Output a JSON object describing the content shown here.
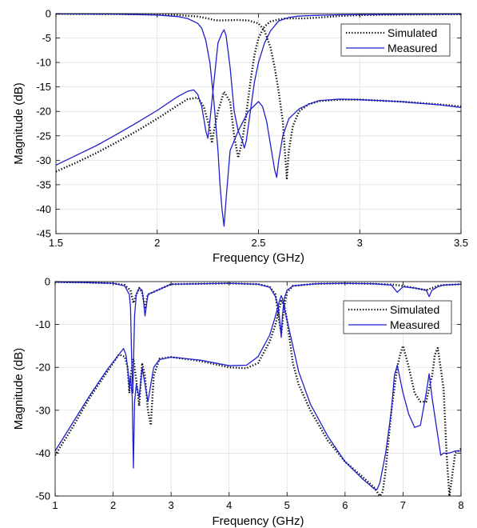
{
  "chart_data": [
    {
      "type": "line",
      "title": "",
      "xlabel": "Frequency (GHz)",
      "ylabel": "Magnitude (dB)",
      "xlim": [
        1.5,
        3.5
      ],
      "ylim": [
        -45,
        0
      ],
      "xticks": [
        1.5,
        2,
        2.5,
        3,
        3.5
      ],
      "xtick_labels": [
        "1.5",
        "2",
        "2.5",
        "3",
        "3.5"
      ],
      "yticks": [
        0,
        -5,
        -10,
        -15,
        -20,
        -25,
        -30,
        -35,
        -40,
        -45
      ],
      "ytick_labels": [
        "0",
        "-5",
        "-10",
        "-15",
        "-20",
        "-25",
        "-30",
        "-35",
        "-40",
        "-45"
      ],
      "grid": true,
      "legend_position": "top-right",
      "series": [
        {
          "name": "Simulated",
          "color": "#000000",
          "style": "dotted",
          "curves": [
            {
              "x": [
                1.5,
                1.6,
                1.7,
                1.8,
                1.9,
                2.0,
                2.1,
                2.15,
                2.2,
                2.23,
                2.26,
                2.27,
                2.28,
                2.3,
                2.33,
                2.36,
                2.38,
                2.4,
                2.42,
                2.44,
                2.46,
                2.48,
                2.5,
                2.53,
                2.56,
                2.6,
                2.62,
                2.63,
                2.64,
                2.65,
                2.68,
                2.72,
                2.8,
                2.9,
                3.0,
                3.2,
                3.4,
                3.5
              ],
              "y": [
                -32.3,
                -30.5,
                -28.5,
                -26.3,
                -24.0,
                -21.5,
                -18.8,
                -17.5,
                -17.2,
                -19.0,
                -23.5,
                -26.5,
                -24.0,
                -20.0,
                -16.0,
                -18.0,
                -25.0,
                -29.5,
                -26.0,
                -20.5,
                -14.0,
                -8.5,
                -5.0,
                -2.6,
                -1.6,
                -1.2,
                -1.1,
                -1.0,
                -1.0,
                -1.0,
                -1.0,
                -1.0,
                -0.8,
                -0.5,
                -0.3,
                -0.2,
                -0.15,
                -0.1
              ]
            },
            {
              "x": [
                1.5,
                1.8,
                2.0,
                2.1,
                2.2,
                2.25,
                2.28,
                2.3,
                2.35,
                2.4,
                2.45,
                2.5,
                2.53,
                2.56,
                2.58,
                2.6,
                2.62,
                2.63,
                2.64,
                2.65,
                2.67,
                2.7,
                2.75,
                2.8,
                2.9,
                3.0,
                3.2,
                3.4,
                3.5
              ],
              "y": [
                -0.05,
                -0.1,
                -0.2,
                -0.3,
                -0.6,
                -1.0,
                -1.3,
                -1.4,
                -1.35,
                -1.3,
                -1.4,
                -2.0,
                -3.5,
                -7.0,
                -11.0,
                -16.0,
                -22.0,
                -28.0,
                -33.7,
                -28.0,
                -23.0,
                -20.0,
                -18.5,
                -17.9,
                -17.6,
                -17.6,
                -18.0,
                -18.6,
                -19.0
              ]
            }
          ]
        },
        {
          "name": "Measured",
          "color": "#1f1fcf",
          "style": "solid",
          "curves": [
            {
              "x": [
                1.5,
                1.6,
                1.7,
                1.8,
                1.9,
                2.0,
                2.1,
                2.15,
                2.18,
                2.2,
                2.22,
                2.24,
                2.25,
                2.26,
                2.28,
                2.3,
                2.32,
                2.33,
                2.34,
                2.36,
                2.38,
                2.4,
                2.42,
                2.43,
                2.44,
                2.46,
                2.48,
                2.5,
                2.53,
                2.56,
                2.6,
                2.65,
                2.7,
                2.8,
                2.9,
                3.0,
                3.2,
                3.4,
                3.5
              ],
              "y": [
                -31.0,
                -29.0,
                -27.0,
                -24.7,
                -22.3,
                -19.8,
                -17.0,
                -15.9,
                -15.6,
                -16.5,
                -19.0,
                -24.0,
                -25.5,
                -22.0,
                -14.0,
                -6.0,
                -4.0,
                -3.3,
                -4.5,
                -11.0,
                -20.0,
                -24.0,
                -26.0,
                -27.5,
                -26.0,
                -20.0,
                -14.0,
                -10.0,
                -6.0,
                -3.5,
                -1.5,
                -0.8,
                -0.5,
                -0.35,
                -0.25,
                -0.2,
                -0.15,
                -0.1,
                -0.1
              ]
            },
            {
              "x": [
                1.5,
                1.8,
                2.0,
                2.1,
                2.15,
                2.2,
                2.22,
                2.24,
                2.26,
                2.28,
                2.3,
                2.31,
                2.32,
                2.33,
                2.34,
                2.36,
                2.4,
                2.45,
                2.5,
                2.52,
                2.54,
                2.56,
                2.58,
                2.59,
                2.6,
                2.62,
                2.65,
                2.7,
                2.75,
                2.8,
                2.9,
                3.0,
                3.2,
                3.4,
                3.5
              ],
              "y": [
                -0.05,
                -0.1,
                -0.3,
                -0.6,
                -1.0,
                -2.0,
                -3.0,
                -5.5,
                -10.0,
                -18.0,
                -28.0,
                -35.0,
                -40.0,
                -43.5,
                -38.0,
                -28.0,
                -24.0,
                -20.0,
                -18.0,
                -19.0,
                -22.0,
                -27.0,
                -32.0,
                -33.5,
                -30.0,
                -25.0,
                -21.5,
                -19.5,
                -18.5,
                -17.8,
                -17.5,
                -17.6,
                -18.0,
                -18.7,
                -19.2
              ]
            }
          ]
        }
      ]
    },
    {
      "type": "line",
      "title": "",
      "xlabel": "Frequency (GHz)",
      "ylabel": "Magnitude (dB)",
      "xlim": [
        1,
        8
      ],
      "ylim": [
        -50,
        0
      ],
      "xticks": [
        1,
        2,
        3,
        4,
        5,
        6,
        7,
        8
      ],
      "xtick_labels": [
        "1",
        "2",
        "3",
        "4",
        "5",
        "6",
        "7",
        "8"
      ],
      "yticks": [
        0,
        -10,
        -20,
        -30,
        -40,
        -50
      ],
      "ytick_labels": [
        "0",
        "-10",
        "-20",
        "-30",
        "-40",
        "-50"
      ],
      "grid": true,
      "legend_position": "top-right",
      "series": [
        {
          "name": "Simulated",
          "color": "#000000",
          "style": "dotted",
          "curves": [
            {
              "x": [
                1.0,
                1.3,
                1.6,
                1.9,
                2.1,
                2.2,
                2.25,
                2.28,
                2.3,
                2.35,
                2.4,
                2.45,
                2.5,
                2.55,
                2.6,
                2.65,
                2.7,
                2.8,
                3.0,
                3.5,
                4.0,
                4.3,
                4.5,
                4.7,
                4.8,
                4.85,
                4.9,
                4.95,
                5.0,
                5.05,
                5.1,
                5.2,
                5.4,
                5.7,
                6.0,
                6.3,
                6.5,
                6.6,
                6.65,
                6.7,
                6.75,
                6.8,
                6.9,
                6.95,
                7.0,
                7.1,
                7.2,
                7.3,
                7.4,
                7.5,
                7.55,
                7.6,
                7.7,
                7.75,
                7.8,
                7.85,
                7.9,
                8.0
              ],
              "y": [
                -40.5,
                -34.0,
                -27.0,
                -21.0,
                -17.0,
                -17.5,
                -20.0,
                -26.0,
                -22.0,
                -18.0,
                -23.0,
                -29.0,
                -19.0,
                -22.0,
                -30.0,
                -33.5,
                -22.0,
                -18.0,
                -17.6,
                -18.5,
                -20.0,
                -20.2,
                -19.0,
                -14.0,
                -10.0,
                -7.0,
                -4.5,
                -5.5,
                -9.0,
                -14.0,
                -19.0,
                -24.0,
                -30.0,
                -37.0,
                -42.0,
                -45.5,
                -48.0,
                -50.0,
                -49.0,
                -44.0,
                -37.0,
                -30.0,
                -20.0,
                -17.0,
                -15.0,
                -20.0,
                -26.0,
                -28.0,
                -28.0,
                -22.0,
                -17.0,
                -15.5,
                -25.0,
                -40.0,
                -50.0,
                -45.0,
                -40.0,
                -39.0
              ]
            },
            {
              "x": [
                1.0,
                1.5,
                2.0,
                2.2,
                2.3,
                2.35,
                2.4,
                2.45,
                2.5,
                2.55,
                2.6,
                3.0,
                4.0,
                4.5,
                4.7,
                4.8,
                4.85,
                4.9,
                4.95,
                5.0,
                5.1,
                5.5,
                6.0,
                6.5,
                6.8,
                6.9,
                7.0,
                7.2,
                7.4,
                7.5,
                7.6,
                7.7,
                8.0
              ],
              "y": [
                -0.1,
                -0.2,
                -0.4,
                -0.8,
                -2.0,
                -5.0,
                -3.0,
                -1.5,
                -2.5,
                -6.0,
                -3.0,
                -0.6,
                -0.4,
                -0.6,
                -1.2,
                -3.0,
                -8.0,
                -12.0,
                -6.0,
                -2.5,
                -1.0,
                -0.5,
                -0.4,
                -0.5,
                -0.7,
                -0.8,
                -1.0,
                -1.5,
                -2.0,
                -1.5,
                -1.0,
                -0.8,
                -0.6
              ]
            }
          ]
        },
        {
          "name": "Measured",
          "color": "#1f1fcf",
          "style": "solid",
          "curves": [
            {
              "x": [
                1.0,
                1.3,
                1.6,
                1.9,
                2.1,
                2.18,
                2.22,
                2.25,
                2.28,
                2.3,
                2.33,
                2.35,
                2.37,
                2.4,
                2.45,
                2.5,
                2.55,
                2.6,
                2.7,
                2.8,
                3.0,
                3.5,
                4.0,
                4.3,
                4.5,
                4.7,
                4.8,
                4.85,
                4.88,
                4.9,
                4.92,
                4.95,
                5.0,
                5.1,
                5.2,
                5.4,
                5.7,
                6.0,
                6.3,
                6.5,
                6.55,
                6.6,
                6.7,
                6.8,
                6.85,
                6.9,
                7.0,
                7.1,
                7.2,
                7.3,
                7.4,
                7.45,
                7.5,
                7.6,
                7.65,
                7.7,
                7.8,
                7.9,
                8.0
              ],
              "y": [
                -39.5,
                -33.0,
                -26.5,
                -20.5,
                -17.0,
                -15.6,
                -17.0,
                -20.0,
                -25.0,
                -22.0,
                -27.0,
                -43.5,
                -28.0,
                -24.0,
                -27.0,
                -20.0,
                -24.0,
                -28.0,
                -20.0,
                -18.2,
                -17.6,
                -18.3,
                -19.6,
                -19.5,
                -17.5,
                -12.5,
                -8.0,
                -5.5,
                -4.0,
                -3.3,
                -4.0,
                -6.0,
                -9.0,
                -15.0,
                -21.0,
                -28.5,
                -36.0,
                -42.0,
                -46.0,
                -48.3,
                -48.5,
                -47.0,
                -40.0,
                -30.0,
                -22.0,
                -19.5,
                -26.0,
                -31.0,
                -34.0,
                -33.5,
                -26.0,
                -21.5,
                -27.0,
                -36.0,
                -40.5,
                -40.0,
                -40.0,
                -39.5,
                -39.5
              ]
            },
            {
              "x": [
                1.0,
                1.5,
                2.0,
                2.2,
                2.28,
                2.3,
                2.32,
                2.34,
                2.37,
                2.4,
                2.45,
                2.5,
                2.52,
                2.55,
                2.6,
                3.0,
                4.0,
                4.5,
                4.7,
                4.8,
                4.85,
                4.88,
                4.9,
                4.92,
                4.95,
                5.0,
                5.1,
                5.5,
                6.0,
                6.5,
                6.8,
                6.9,
                7.0,
                7.2,
                7.4,
                7.45,
                7.5,
                7.6,
                7.7,
                8.0
              ],
              "y": [
                -0.1,
                -0.2,
                -0.4,
                -1.0,
                -3.0,
                -6.0,
                -18.0,
                -26.0,
                -8.0,
                -3.0,
                -1.5,
                -2.0,
                -4.0,
                -8.0,
                -3.0,
                -0.6,
                -0.4,
                -0.6,
                -1.3,
                -3.5,
                -6.0,
                -10.0,
                -13.0,
                -8.0,
                -4.0,
                -2.0,
                -1.0,
                -0.5,
                -0.4,
                -0.5,
                -0.8,
                -2.5,
                -1.2,
                -1.5,
                -2.0,
                -3.5,
                -2.0,
                -1.2,
                -0.8,
                -0.6
              ]
            }
          ]
        }
      ]
    }
  ]
}
